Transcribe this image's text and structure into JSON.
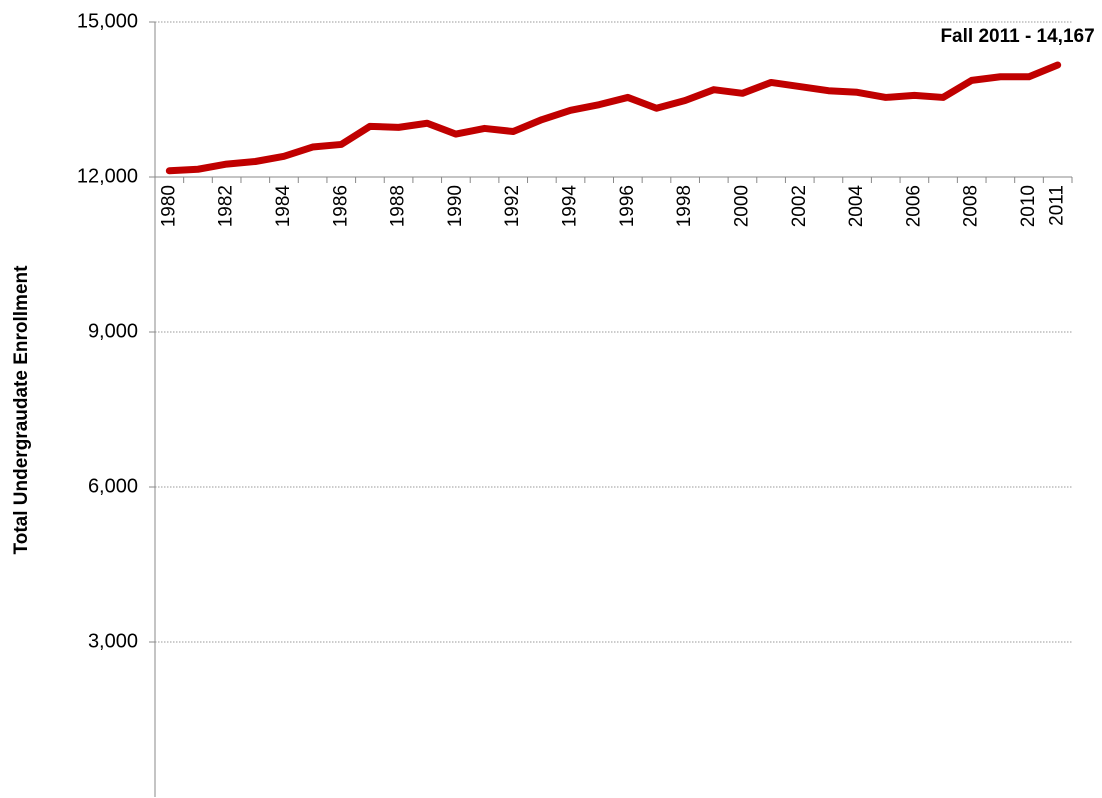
{
  "chart_data": {
    "type": "line",
    "y_label": "Total Undergraudate Enrollment",
    "annotation": "Fall 2011 - 14,167",
    "categories": [
      "1980",
      null,
      "1982",
      null,
      "1984",
      null,
      "1986",
      null,
      "1988",
      null,
      "1990",
      null,
      "1992",
      null,
      "1994",
      null,
      "1996",
      null,
      "1998",
      null,
      "2000",
      null,
      "2002",
      null,
      "2004",
      null,
      "2006",
      null,
      "2008",
      null,
      "2010",
      "2011"
    ],
    "values": [
      12120,
      12150,
      12250,
      12300,
      12400,
      12580,
      12630,
      12980,
      12960,
      13040,
      12830,
      12940,
      12880,
      13110,
      13290,
      13400,
      13540,
      13330,
      13480,
      13690,
      13620,
      13830,
      13750,
      13670,
      13640,
      13540,
      13580,
      13540,
      13870,
      13940,
      13940,
      14167
    ],
    "color": "#c00000",
    "ylim": [
      0,
      15000
    ],
    "yticks": [
      {
        "value": 3000,
        "label": "3,000"
      },
      {
        "value": 6000,
        "label": "6,000"
      },
      {
        "value": 9000,
        "label": "9,000"
      },
      {
        "value": 12000,
        "label": "12,000"
      },
      {
        "value": 15000,
        "label": "15,000"
      }
    ],
    "x_axis_crossing": 12000,
    "grid": true
  }
}
